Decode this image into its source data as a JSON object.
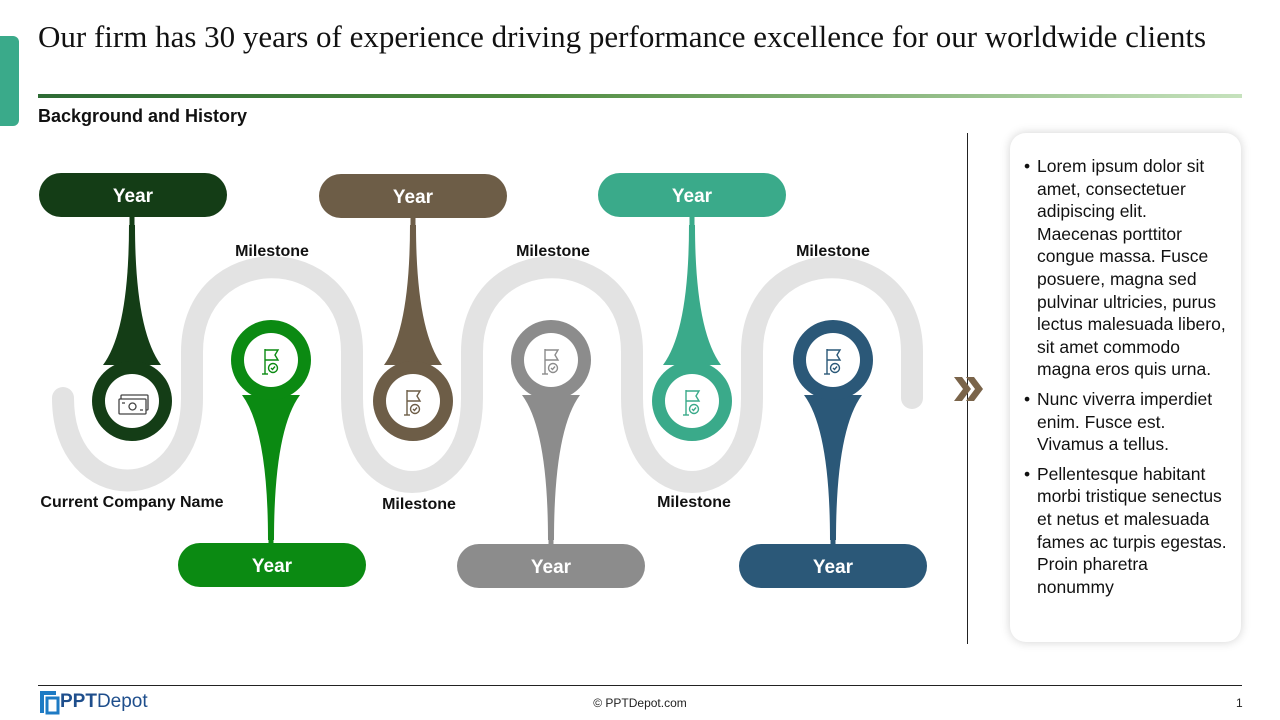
{
  "slide": {
    "title": "Our firm has 30 years of experience driving performance excellence for our worldwide clients",
    "subtitle": "Background and History",
    "colors": {
      "accent": "#3aaa8a",
      "dark_green": "#143d16",
      "green": "#0b8a12",
      "brown": "#6d5d47",
      "gray": "#8c8c8c",
      "teal": "#3aaa8a",
      "blue": "#2b5878",
      "track": "#e3e3e3"
    }
  },
  "timeline": {
    "pills": [
      {
        "text": "Year",
        "color": "#143d16",
        "icon": "cash-icon"
      },
      {
        "text": "Year",
        "color": "#0b8a12",
        "icon": "flag-icon"
      },
      {
        "text": "Year",
        "color": "#6d5d47",
        "icon": "flag-icon"
      },
      {
        "text": "Year",
        "color": "#8c8c8c",
        "icon": "flag-icon"
      },
      {
        "text": "Year",
        "color": "#3aaa8a",
        "icon": "flag-icon"
      },
      {
        "text": "Year",
        "color": "#2b5878",
        "icon": "flag-icon"
      }
    ],
    "labels": [
      "Current Company Name",
      "Milestone",
      "Milestone",
      "Milestone",
      "Milestone",
      "Milestone"
    ]
  },
  "panel": {
    "bullets": [
      "Lorem ipsum dolor sit amet, consectetuer adipiscing elit. Maecenas porttitor congue massa. Fusce posuere, magna sed pulvinar ultricies, purus lectus malesuada libero, sit amet commodo magna eros quis urna.",
      "Nunc viverra imperdiet enim. Fusce est. Vivamus a tellus.",
      "Pellentesque habitant morbi tristique senectus et netus et malesuada fames ac turpis egestas. Proin pharetra nonummy"
    ]
  },
  "footer": {
    "logo_bold": "PPT",
    "logo_rest": "Depot",
    "copyright": "© PPTDepot.com",
    "page_number": "1"
  }
}
